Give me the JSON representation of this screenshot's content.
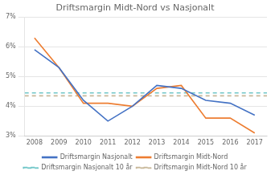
{
  "chart_data": {
    "type": "line",
    "title": "Driftsmargin Midt-Nord vs Nasjonalt",
    "x": [
      2008,
      2009,
      2010,
      2011,
      2012,
      2013,
      2014,
      2015,
      2016,
      2017
    ],
    "series": [
      {
        "name": "Driftsmargin Nasjonalt",
        "color": "#4472C4",
        "line_style": "solid",
        "values": [
          0.059,
          0.053,
          0.042,
          0.035,
          0.04,
          0.047,
          0.046,
          0.042,
          0.041,
          0.037
        ]
      },
      {
        "name": "Driftsmargin Nasjonalt 10 år",
        "color": "#70C6C8",
        "line_style": "dashed",
        "type": "hline",
        "y": 0.0445
      },
      {
        "name": "Driftsmargin Midt-Nord",
        "color": "#ED7D31",
        "line_style": "solid",
        "values": [
          0.063,
          0.053,
          0.041,
          0.041,
          0.04,
          0.046,
          0.047,
          0.036,
          0.036,
          0.031
        ]
      },
      {
        "name": "Driftsmargin Midt-Nord 10 år",
        "color": "#C8B89A",
        "line_style": "dashed",
        "type": "hline",
        "y": 0.0435
      }
    ],
    "xlim": [
      2007.6,
      2017.5
    ],
    "xticks": [
      2008,
      2009,
      2010,
      2011,
      2012,
      2013,
      2014,
      2015,
      2016,
      2017
    ],
    "ylim": [
      0.03,
      0.07
    ],
    "yticks": [
      {
        "value": 0.03,
        "label": "3%"
      },
      {
        "value": 0.04,
        "label": "4%"
      },
      {
        "value": 0.05,
        "label": "5%"
      },
      {
        "value": 0.06,
        "label": "6%"
      },
      {
        "value": 0.07,
        "label": "7%"
      }
    ],
    "grid": "y",
    "legend": "bottom"
  }
}
